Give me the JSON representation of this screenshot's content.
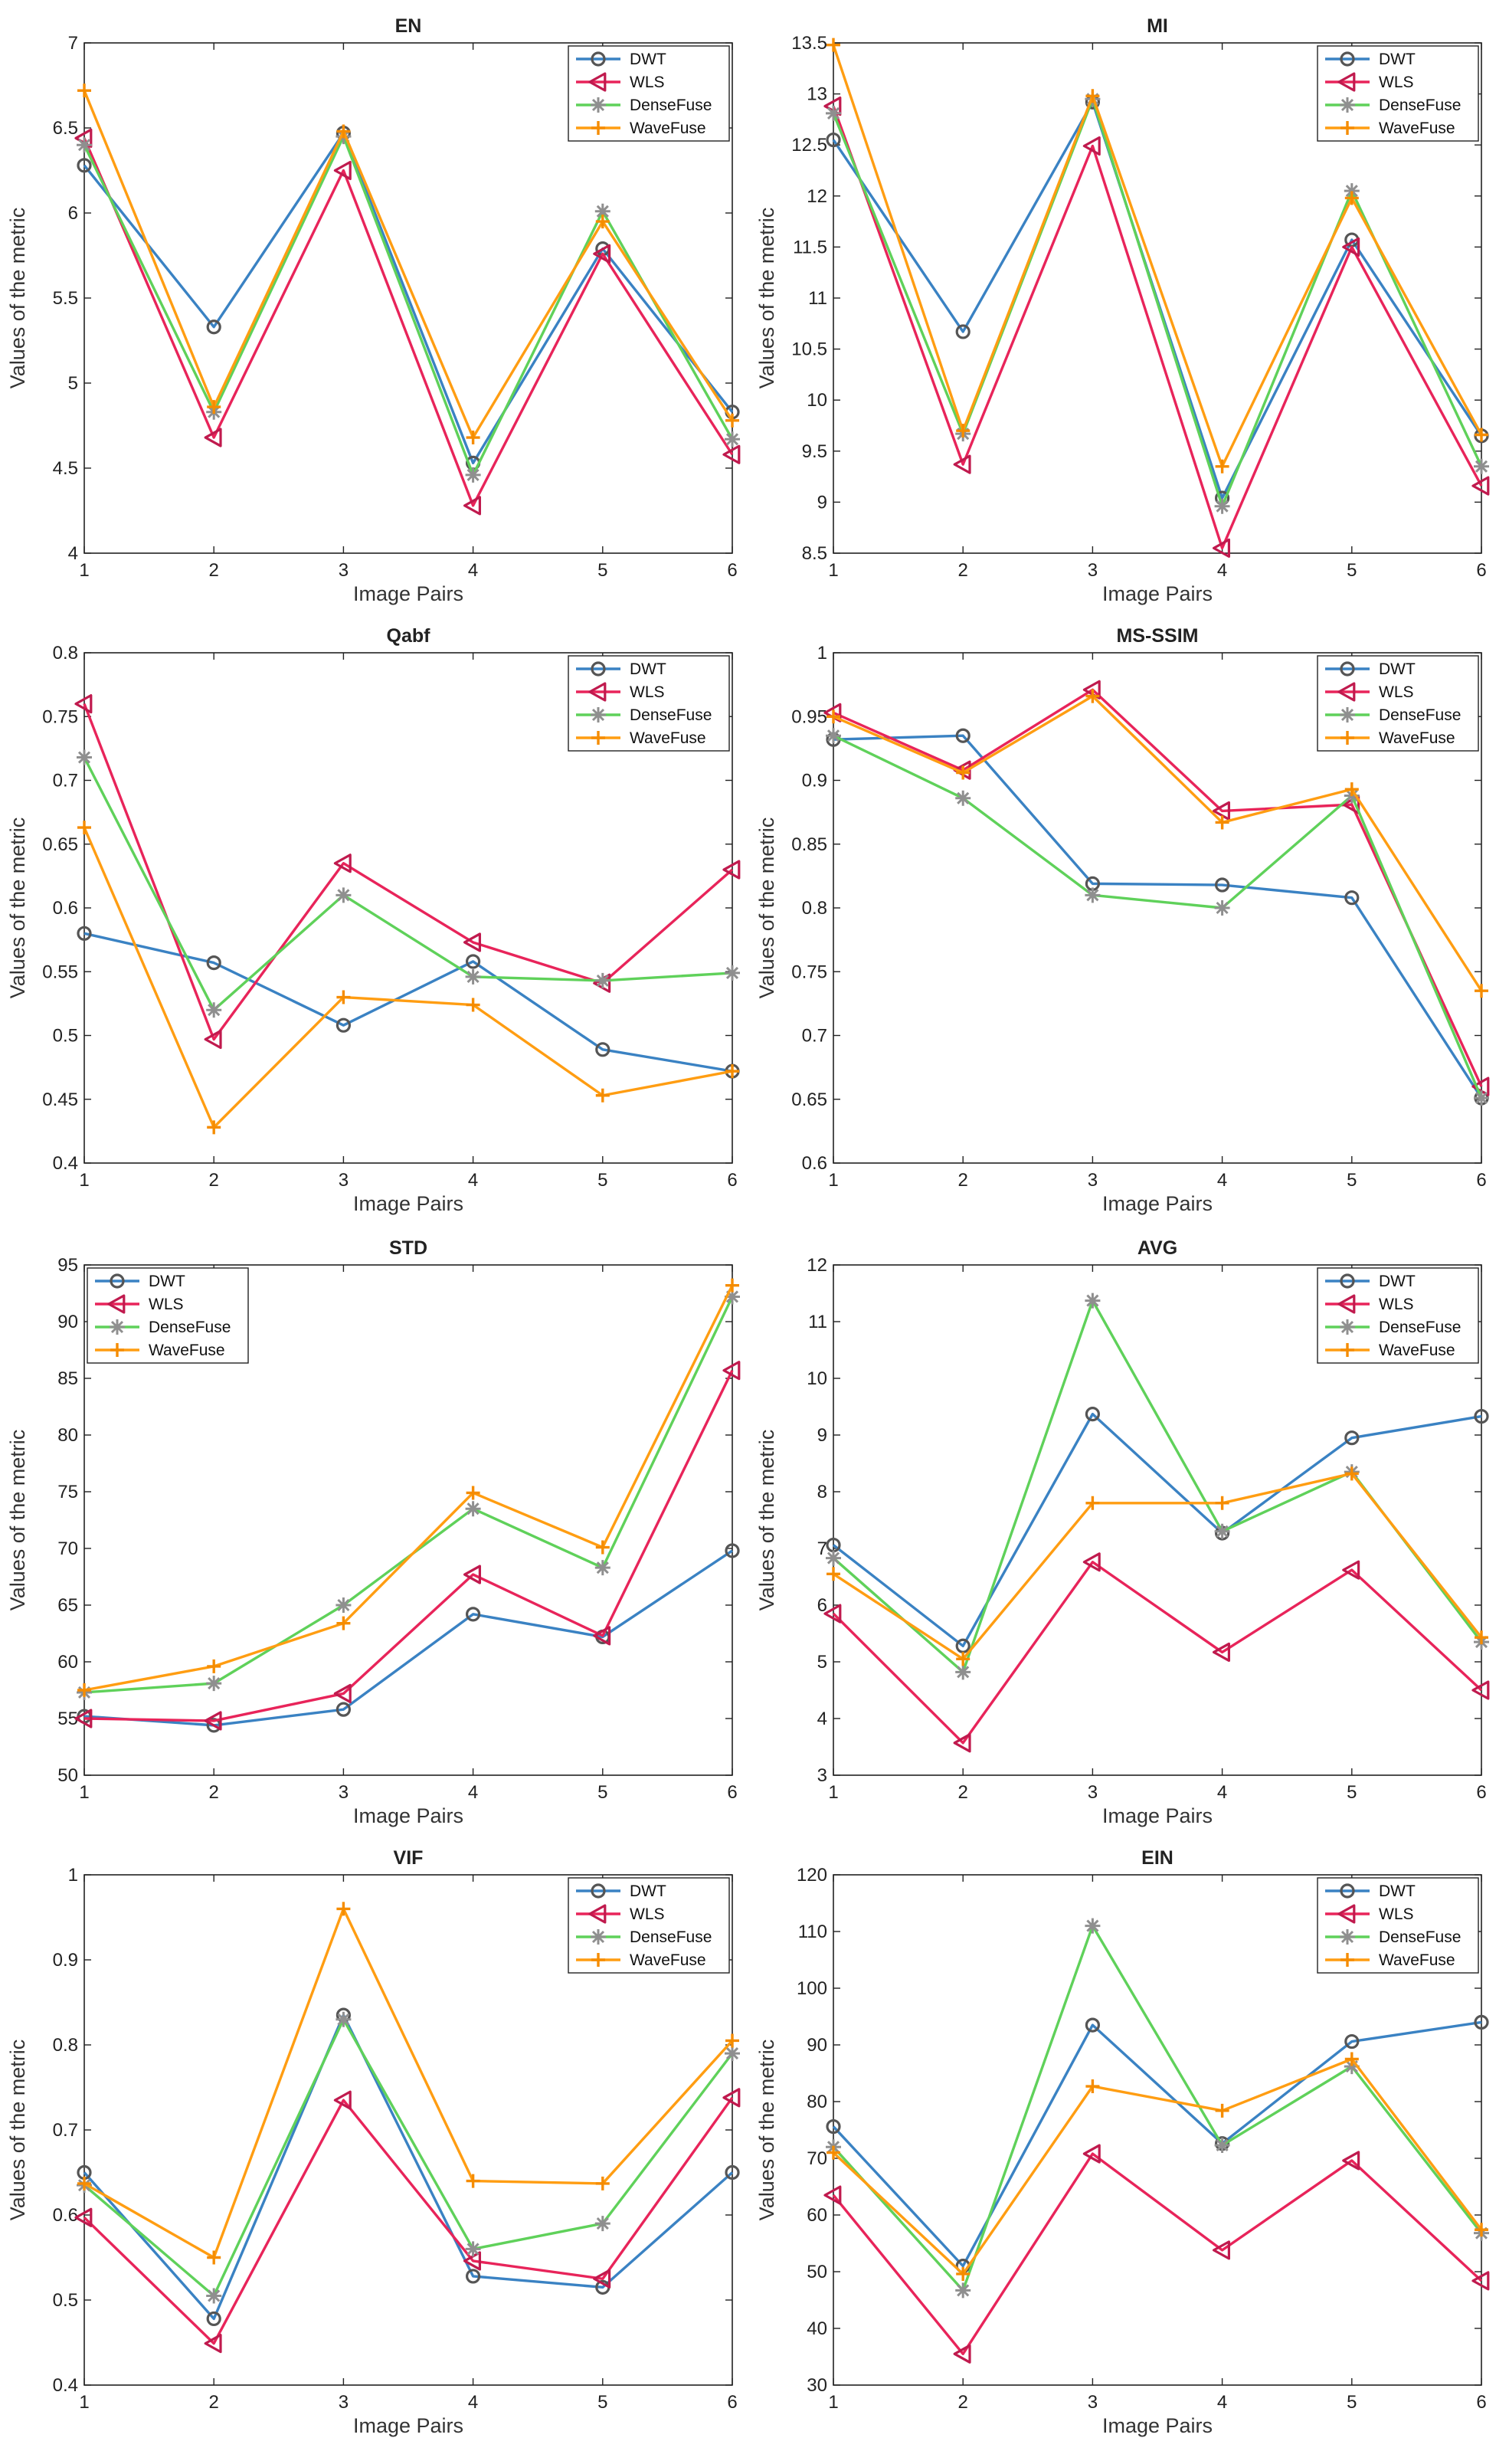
{
  "series_colors": {
    "DWT": "#3a82c3",
    "WLS": "#e8245a",
    "DenseFuse": "#5fd15a",
    "WaveFuse": "#ff9d12"
  },
  "marker_colors": {
    "circle": "#555555",
    "triangle": "#c01a4e",
    "star": "#8f8f8f",
    "plus": "#f58c00"
  },
  "chart_data": [
    {
      "type": "line",
      "title": "EN",
      "xlabel": "Image Pairs",
      "ylabel": "Values of the metric",
      "x": [
        1,
        2,
        3,
        4,
        5,
        6
      ],
      "ylim": [
        4,
        7
      ],
      "yticks": [
        "4",
        "4.5",
        "5",
        "5.5",
        "6",
        "6.5",
        "7"
      ],
      "ytick_values": [
        4,
        4.5,
        5,
        5.5,
        6,
        6.5,
        7
      ],
      "grid": false,
      "legend": "top-right",
      "series": [
        {
          "name": "DWT",
          "values": [
            6.28,
            5.33,
            6.47,
            4.53,
            5.79,
            4.83
          ]
        },
        {
          "name": "WLS",
          "values": [
            6.44,
            4.68,
            6.25,
            4.28,
            5.76,
            4.58
          ]
        },
        {
          "name": "DenseFuse",
          "values": [
            6.4,
            4.83,
            6.45,
            4.46,
            6.01,
            4.67
          ]
        },
        {
          "name": "WaveFuse",
          "values": [
            6.72,
            4.86,
            6.48,
            4.68,
            5.95,
            4.78
          ]
        }
      ]
    },
    {
      "type": "line",
      "title": "MI",
      "xlabel": "Image Pairs",
      "ylabel": "Values of the metric",
      "x": [
        1,
        2,
        3,
        4,
        5,
        6
      ],
      "ylim": [
        8.5,
        13.5
      ],
      "yticks": [
        "8.5",
        "9",
        "9.5",
        "10",
        "10.5",
        "11",
        "11.5",
        "12",
        "12.5",
        "13",
        "13.5"
      ],
      "ytick_values": [
        8.5,
        9,
        9.5,
        10,
        10.5,
        11,
        11.5,
        12,
        12.5,
        13,
        13.5
      ],
      "grid": false,
      "legend": "top-right",
      "series": [
        {
          "name": "DWT",
          "values": [
            12.55,
            10.67,
            12.92,
            9.04,
            11.57,
            9.65
          ]
        },
        {
          "name": "WLS",
          "values": [
            12.88,
            9.37,
            12.49,
            8.55,
            11.5,
            9.16
          ]
        },
        {
          "name": "DenseFuse",
          "values": [
            12.81,
            9.67,
            12.95,
            8.96,
            12.05,
            9.35
          ]
        },
        {
          "name": "WaveFuse",
          "values": [
            13.48,
            9.7,
            12.98,
            9.35,
            11.98,
            9.66
          ]
        }
      ]
    },
    {
      "type": "line",
      "title": "Qabf",
      "xlabel": "Image Pairs",
      "ylabel": "Values of the metric",
      "x": [
        1,
        2,
        3,
        4,
        5,
        6
      ],
      "ylim": [
        0.4,
        0.8
      ],
      "yticks": [
        "0.4",
        "0.45",
        "0.5",
        "0.55",
        "0.6",
        "0.65",
        "0.7",
        "0.75",
        "0.8"
      ],
      "ytick_values": [
        0.4,
        0.45,
        0.5,
        0.55,
        0.6,
        0.65,
        0.7,
        0.75,
        0.8
      ],
      "grid": false,
      "legend": "top-right",
      "series": [
        {
          "name": "DWT",
          "values": [
            0.58,
            0.557,
            0.508,
            0.558,
            0.489,
            0.472
          ]
        },
        {
          "name": "WLS",
          "values": [
            0.76,
            0.497,
            0.635,
            0.573,
            0.541,
            0.63
          ]
        },
        {
          "name": "DenseFuse",
          "values": [
            0.718,
            0.52,
            0.61,
            0.546,
            0.543,
            0.549
          ]
        },
        {
          "name": "WaveFuse",
          "values": [
            0.663,
            0.428,
            0.53,
            0.524,
            0.453,
            0.472
          ]
        }
      ]
    },
    {
      "type": "line",
      "title": "MS-SSIM",
      "xlabel": "Image Pairs",
      "ylabel": "Values of the metric",
      "x": [
        1,
        2,
        3,
        4,
        5,
        6
      ],
      "ylim": [
        0.6,
        1
      ],
      "yticks": [
        "0.6",
        "0.65",
        "0.7",
        "0.75",
        "0.8",
        "0.85",
        "0.9",
        "0.95",
        "1"
      ],
      "ytick_values": [
        0.6,
        0.65,
        0.7,
        0.75,
        0.8,
        0.85,
        0.9,
        0.95,
        1
      ],
      "grid": false,
      "legend": "top-right",
      "series": [
        {
          "name": "DWT",
          "values": [
            0.932,
            0.935,
            0.819,
            0.818,
            0.808,
            0.651
          ]
        },
        {
          "name": "WLS",
          "values": [
            0.953,
            0.908,
            0.971,
            0.876,
            0.881,
            0.66
          ]
        },
        {
          "name": "DenseFuse",
          "values": [
            0.935,
            0.886,
            0.81,
            0.8,
            0.888,
            0.651
          ]
        },
        {
          "name": "WaveFuse",
          "values": [
            0.95,
            0.906,
            0.966,
            0.867,
            0.893,
            0.735
          ]
        }
      ]
    },
    {
      "type": "line",
      "title": "STD",
      "xlabel": "Image Pairs",
      "ylabel": "Values of the metric",
      "x": [
        1,
        2,
        3,
        4,
        5,
        6
      ],
      "ylim": [
        50,
        95
      ],
      "yticks": [
        "50",
        "55",
        "60",
        "65",
        "70",
        "75",
        "80",
        "85",
        "90",
        "95"
      ],
      "ytick_values": [
        50,
        55,
        60,
        65,
        70,
        75,
        80,
        85,
        90,
        95
      ],
      "grid": false,
      "legend": "top-left",
      "series": [
        {
          "name": "DWT",
          "values": [
            55.2,
            54.4,
            55.8,
            64.2,
            62.2,
            69.8
          ]
        },
        {
          "name": "WLS",
          "values": [
            55.0,
            54.8,
            57.2,
            67.7,
            62.3,
            85.7
          ]
        },
        {
          "name": "DenseFuse",
          "values": [
            57.3,
            58.1,
            65.0,
            73.5,
            68.3,
            92.2
          ]
        },
        {
          "name": "WaveFuse",
          "values": [
            57.5,
            59.6,
            63.4,
            74.9,
            70.1,
            93.2
          ]
        }
      ]
    },
    {
      "type": "line",
      "title": "AVG",
      "xlabel": "Image Pairs",
      "ylabel": "Values of the metric",
      "x": [
        1,
        2,
        3,
        4,
        5,
        6
      ],
      "ylim": [
        3,
        12
      ],
      "yticks": [
        "3",
        "4",
        "5",
        "6",
        "7",
        "8",
        "9",
        "10",
        "11",
        "12"
      ],
      "ytick_values": [
        3,
        4,
        5,
        6,
        7,
        8,
        9,
        10,
        11,
        12
      ],
      "grid": false,
      "legend": "top-right",
      "series": [
        {
          "name": "DWT",
          "values": [
            7.06,
            5.28,
            9.37,
            7.27,
            8.95,
            9.33
          ]
        },
        {
          "name": "WLS",
          "values": [
            5.85,
            3.57,
            6.76,
            5.17,
            6.62,
            4.5
          ]
        },
        {
          "name": "DenseFuse",
          "values": [
            6.83,
            4.82,
            11.37,
            7.3,
            8.35,
            5.35
          ]
        },
        {
          "name": "WaveFuse",
          "values": [
            6.55,
            5.05,
            7.8,
            7.8,
            8.32,
            5.43
          ]
        }
      ]
    },
    {
      "type": "line",
      "title": "VIF",
      "xlabel": "Image Pairs",
      "ylabel": "Values of the metric",
      "x": [
        1,
        2,
        3,
        4,
        5,
        6
      ],
      "ylim": [
        0.4,
        1
      ],
      "yticks": [
        "0.4",
        "0.5",
        "0.6",
        "0.7",
        "0.8",
        "0.9",
        "1"
      ],
      "ytick_values": [
        0.4,
        0.5,
        0.6,
        0.7,
        0.8,
        0.9,
        1
      ],
      "grid": false,
      "legend": "top-right",
      "series": [
        {
          "name": "DWT",
          "values": [
            0.65,
            0.478,
            0.835,
            0.528,
            0.515,
            0.65
          ]
        },
        {
          "name": "WLS",
          "values": [
            0.597,
            0.449,
            0.735,
            0.546,
            0.525,
            0.738
          ]
        },
        {
          "name": "DenseFuse",
          "values": [
            0.635,
            0.505,
            0.83,
            0.56,
            0.59,
            0.79
          ]
        },
        {
          "name": "WaveFuse",
          "values": [
            0.637,
            0.55,
            0.96,
            0.64,
            0.637,
            0.805
          ]
        }
      ]
    },
    {
      "type": "line",
      "title": "EIN",
      "xlabel": "Image Pairs",
      "ylabel": "Values of the metric",
      "x": [
        1,
        2,
        3,
        4,
        5,
        6
      ],
      "ylim": [
        30,
        120
      ],
      "yticks": [
        "30",
        "40",
        "50",
        "60",
        "70",
        "80",
        "90",
        "100",
        "110",
        "120"
      ],
      "ytick_values": [
        30,
        40,
        50,
        60,
        70,
        80,
        90,
        100,
        110,
        120
      ],
      "grid": false,
      "legend": "top-right",
      "series": [
        {
          "name": "DWT",
          "values": [
            75.6,
            51.0,
            93.5,
            72.6,
            90.6,
            94.0
          ]
        },
        {
          "name": "WLS",
          "values": [
            63.5,
            35.5,
            70.8,
            53.8,
            69.6,
            48.4
          ]
        },
        {
          "name": "DenseFuse",
          "values": [
            72.0,
            46.7,
            111.0,
            72.3,
            86.2,
            56.8
          ]
        },
        {
          "name": "WaveFuse",
          "values": [
            71.0,
            49.6,
            82.7,
            78.4,
            87.5,
            57.4
          ]
        }
      ]
    }
  ]
}
